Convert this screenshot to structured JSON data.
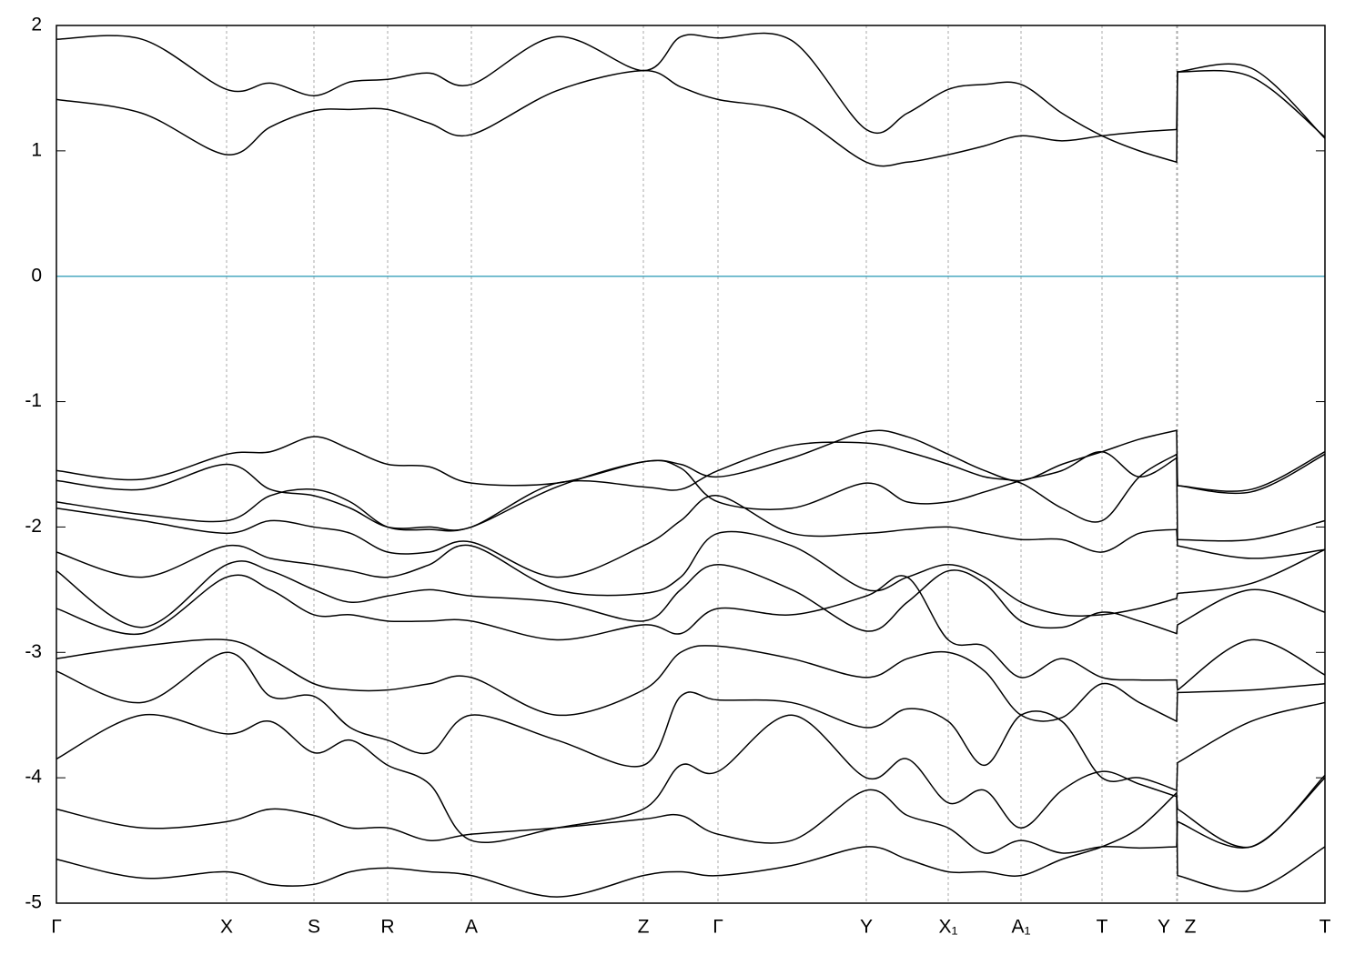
{
  "chart_data": {
    "type": "line",
    "x": [
      0,
      94,
      187,
      235,
      283,
      323,
      364,
      410,
      456,
      550,
      645,
      686,
      727,
      808,
      890,
      935,
      980,
      1020,
      1060,
      1105,
      1149,
      1190,
      1231,
      1232,
      1313,
      1394
    ],
    "color": "#000000",
    "reference_line": {
      "value": 0,
      "color": "#4aa8c0"
    },
    "series": [
      {
        "values": [
          1.89,
          1.89,
          1.49,
          1.54,
          1.44,
          1.55,
          1.57,
          1.62,
          1.53,
          1.91,
          1.64,
          1.91,
          1.9,
          1.88,
          1.17,
          1.3,
          1.49,
          1.53,
          1.53,
          1.3,
          1.12,
          1.0,
          0.91,
          1.63,
          1.66,
          1.1
        ]
      },
      {
        "values": [
          1.41,
          1.3,
          0.97,
          1.19,
          1.32,
          1.33,
          1.33,
          1.22,
          1.13,
          1.48,
          1.64,
          1.51,
          1.41,
          1.3,
          0.91,
          0.91,
          0.97,
          1.04,
          1.12,
          1.08,
          1.12,
          1.15,
          1.17,
          1.63,
          1.59,
          1.11
        ]
      },
      {
        "values": [
          -1.55,
          -1.62,
          -1.42,
          -1.4,
          -1.28,
          -1.38,
          -1.5,
          -1.52,
          -1.65,
          -1.65,
          -1.48,
          -1.5,
          -1.6,
          -1.45,
          -1.24,
          -1.28,
          -1.42,
          -1.55,
          -1.63,
          -1.5,
          -1.4,
          -1.3,
          -1.23,
          -1.67,
          -1.7,
          -1.4
        ]
      },
      {
        "values": [
          -1.63,
          -1.7,
          -1.5,
          -1.7,
          -1.75,
          -1.85,
          -2.0,
          -2.0,
          -2.0,
          -1.65,
          -1.68,
          -1.7,
          -1.55,
          -1.35,
          -1.33,
          -1.4,
          -1.5,
          -1.6,
          -1.65,
          -1.85,
          -1.95,
          -1.6,
          -1.42,
          -1.67,
          -1.72,
          -1.42
        ]
      },
      {
        "values": [
          -1.8,
          -1.9,
          -1.95,
          -1.75,
          -1.7,
          -1.8,
          -2.0,
          -2.02,
          -2.0,
          -1.68,
          -1.48,
          -1.53,
          -1.8,
          -1.85,
          -1.65,
          -1.8,
          -1.8,
          -1.72,
          -1.63,
          -1.55,
          -1.4,
          -1.6,
          -1.45,
          -2.1,
          -2.1,
          -1.95
        ]
      },
      {
        "values": [
          -1.85,
          -1.95,
          -2.05,
          -1.95,
          -2.0,
          -2.05,
          -2.2,
          -2.2,
          -2.12,
          -2.4,
          -2.15,
          -1.95,
          -1.75,
          -2.05,
          -2.05,
          -2.02,
          -2.0,
          -2.05,
          -2.1,
          -2.1,
          -2.2,
          -2.05,
          -2.02,
          -2.15,
          -2.25,
          -2.18
        ]
      },
      {
        "values": [
          -2.2,
          -2.4,
          -2.15,
          -2.25,
          -2.3,
          -2.35,
          -2.4,
          -2.3,
          -2.15,
          -2.5,
          -2.53,
          -2.4,
          -2.05,
          -2.15,
          -2.5,
          -2.4,
          -2.3,
          -2.4,
          -2.6,
          -2.7,
          -2.7,
          -2.65,
          -2.57,
          -2.53,
          -2.45,
          -2.18
        ]
      },
      {
        "values": [
          -2.35,
          -2.8,
          -2.3,
          -2.35,
          -2.5,
          -2.6,
          -2.55,
          -2.5,
          -2.55,
          -2.6,
          -2.75,
          -2.5,
          -2.3,
          -2.5,
          -2.83,
          -2.6,
          -2.35,
          -2.45,
          -2.75,
          -2.8,
          -2.68,
          -2.75,
          -2.85,
          -2.78,
          -2.5,
          -2.68
        ]
      },
      {
        "values": [
          -2.65,
          -2.85,
          -2.4,
          -2.5,
          -2.7,
          -2.7,
          -2.75,
          -2.75,
          -2.75,
          -2.9,
          -2.78,
          -2.85,
          -2.65,
          -2.7,
          -2.55,
          -2.4,
          -2.9,
          -2.95,
          -3.2,
          -3.05,
          -3.2,
          -3.22,
          -3.22,
          -3.3,
          -2.9,
          -3.18
        ]
      },
      {
        "values": [
          -3.05,
          -2.95,
          -2.9,
          -3.05,
          -3.25,
          -3.3,
          -3.3,
          -3.25,
          -3.2,
          -3.5,
          -3.3,
          -3.0,
          -2.95,
          -3.05,
          -3.2,
          -3.05,
          -3.0,
          -3.15,
          -3.5,
          -3.52,
          -3.25,
          -3.4,
          -3.55,
          -3.32,
          -3.3,
          -3.25
        ]
      },
      {
        "values": [
          -3.15,
          -3.4,
          -3.0,
          -3.35,
          -3.35,
          -3.6,
          -3.7,
          -3.8,
          -3.5,
          -3.7,
          -3.9,
          -3.35,
          -3.38,
          -3.4,
          -3.6,
          -3.45,
          -3.55,
          -3.9,
          -3.5,
          -3.55,
          -4.0,
          -4.0,
          -4.1,
          -3.88,
          -3.55,
          -3.4
        ]
      },
      {
        "values": [
          -3.85,
          -3.5,
          -3.65,
          -3.55,
          -3.8,
          -3.7,
          -3.9,
          -4.05,
          -4.5,
          -4.4,
          -4.25,
          -3.9,
          -3.95,
          -3.5,
          -4.0,
          -3.85,
          -4.2,
          -4.1,
          -4.4,
          -4.1,
          -3.95,
          -4.05,
          -4.15,
          -4.25,
          -4.55,
          -3.98
        ]
      },
      {
        "values": [
          -4.25,
          -4.4,
          -4.35,
          -4.25,
          -4.3,
          -4.4,
          -4.4,
          -4.5,
          -4.45,
          -4.4,
          -4.33,
          -4.3,
          -4.45,
          -4.5,
          -4.1,
          -4.3,
          -4.4,
          -4.6,
          -4.5,
          -4.6,
          -4.55,
          -4.56,
          -4.55,
          -4.35,
          -4.55,
          -4.0
        ]
      },
      {
        "values": [
          -4.65,
          -4.8,
          -4.75,
          -4.85,
          -4.85,
          -4.75,
          -4.72,
          -4.75,
          -4.78,
          -4.95,
          -4.78,
          -4.75,
          -4.78,
          -4.7,
          -4.55,
          -4.65,
          -4.75,
          -4.75,
          -4.78,
          -4.65,
          -4.55,
          -4.4,
          -4.12,
          -4.78,
          -4.9,
          -4.55
        ]
      }
    ],
    "xlim": [
      0,
      1394
    ],
    "xticks": [
      {
        "value": 0,
        "label": "Γ"
      },
      {
        "value": 187,
        "label": "X"
      },
      {
        "value": 283,
        "label": "S"
      },
      {
        "value": 364,
        "label": "R"
      },
      {
        "value": 456,
        "label": "A"
      },
      {
        "value": 645,
        "label": "Z"
      },
      {
        "value": 727,
        "label": "Γ"
      },
      {
        "value": 890,
        "label": "Y"
      },
      {
        "value": 980,
        "label": "X₁"
      },
      {
        "value": 1060,
        "label": "A₁"
      },
      {
        "value": 1149,
        "label": "T"
      },
      {
        "value": 1231,
        "label": "Y"
      },
      {
        "value": 1232,
        "label": "Z"
      },
      {
        "value": 1394,
        "label": "T"
      }
    ],
    "ylim": [
      -5,
      2
    ],
    "yticks": [
      -5,
      -4,
      -3,
      -2,
      -1,
      0,
      1,
      2
    ],
    "grid": true
  }
}
